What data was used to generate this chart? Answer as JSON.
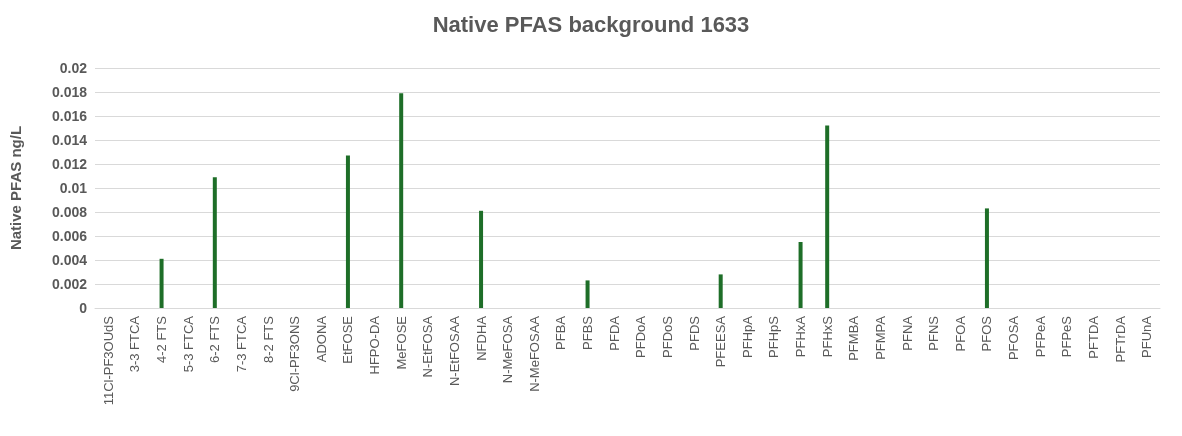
{
  "chart_data": {
    "type": "bar",
    "title": "Native PFAS background 1633",
    "ylabel": "Native PFAS ng/L",
    "categories": [
      "11Cl-PF3OUdS",
      "3-3 FTCA",
      "4-2 FTS",
      "5-3 FTCA",
      "6-2 FTS",
      "7-3 FTCA",
      "8-2 FTS",
      "9Cl-PF3ONS",
      "ADONA",
      "EtFOSE",
      "HFPO-DA",
      "MeFOSE",
      "N-EtFOSA",
      "N-EtFOSAA",
      "NFDHA",
      "N-MeFOSA",
      "N-MeFOSAA",
      "PFBA",
      "PFBS",
      "PFDA",
      "PFDoA",
      "PFDoS",
      "PFDS",
      "PFEESA",
      "PFHpA",
      "PFHpS",
      "PFHxA",
      "PFHxS",
      "PFMBA",
      "PFMPA",
      "PFNA",
      "PFNS",
      "PFOA",
      "PFOS",
      "PFOSA",
      "PFPeA",
      "PFPeS",
      "PFTDA",
      "PFTrDA",
      "PFUnA"
    ],
    "values": [
      0,
      0,
      0.0041,
      0,
      0.0109,
      0,
      0,
      0,
      0,
      0.0127,
      0,
      0.0179,
      0,
      0,
      0.0081,
      0,
      0,
      0,
      0.0023,
      0,
      0,
      0,
      0,
      0.0028,
      0,
      0,
      0.0055,
      0.0152,
      0,
      0,
      0,
      0,
      0,
      0.0083,
      0,
      0,
      0,
      0,
      0,
      0
    ],
    "color": "#1e6e28",
    "ylim": [
      0,
      0.02
    ],
    "yticks": [
      0,
      0.002,
      0.004,
      0.006,
      0.008,
      0.01,
      0.012,
      0.014,
      0.016,
      0.018,
      0.02
    ],
    "grid": true
  }
}
